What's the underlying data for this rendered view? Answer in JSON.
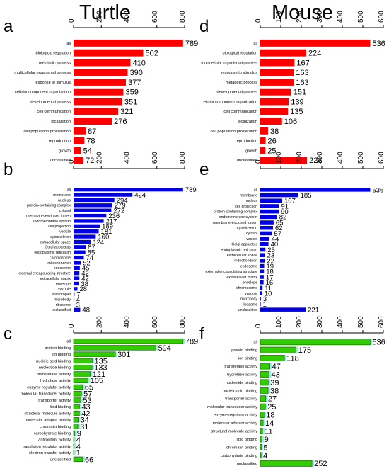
{
  "titles": {
    "left": "Turtle",
    "right": "Mouse"
  },
  "panel_letters": {
    "a": "a",
    "b": "b",
    "c": "c",
    "d": "d",
    "e": "e",
    "f": "f"
  },
  "colors": {
    "biological_process": "#ff0000",
    "cellular_component": "#0000e6",
    "molecular_function": "#33cc00"
  },
  "chart_data": [
    {
      "panel": "a",
      "type": "bar",
      "orientation": "horizontal",
      "xlim": [
        0,
        800
      ],
      "ticks": [
        0,
        200,
        400,
        600,
        800
      ],
      "color": "#ff0000",
      "categories": [
        "all",
        "biological regulation",
        "metabolic process",
        "multicellular organismal process",
        "response to stimulus",
        "cellular component organization",
        "developmental process",
        "cell communication",
        "localization",
        "cell population proliferation",
        "reproduction",
        "growth",
        "unclassified"
      ],
      "values": [
        789,
        502,
        410,
        390,
        377,
        359,
        351,
        321,
        276,
        87,
        78,
        54,
        72
      ]
    },
    {
      "panel": "b",
      "type": "bar",
      "orientation": "horizontal",
      "xlim": [
        0,
        800
      ],
      "ticks": [
        0,
        200,
        400,
        600,
        800
      ],
      "color": "#0000e6",
      "categories": [
        "all",
        "membrane",
        "nucleus",
        "protein-containing complex",
        "cytosol",
        "membrane-enclosed lumen",
        "endomembrane system",
        "cell projection",
        "vesicle",
        "cytoskeleton",
        "extracellular space",
        "Golgi apparatus",
        "endoplasmic reticulum",
        "chromosome",
        "mitochondrion",
        "endosome",
        "external encapsulating structure",
        "extracellular matrix",
        "envelope",
        "vacuole",
        "lipid droplet",
        "microbody",
        "ribosome",
        "unclassified"
      ],
      "values": [
        789,
        424,
        294,
        279,
        272,
        236,
        217,
        189,
        181,
        160,
        124,
        87,
        85,
        74,
        52,
        45,
        42,
        42,
        38,
        28,
        7,
        4,
        3,
        48
      ]
    },
    {
      "panel": "c",
      "type": "bar",
      "orientation": "horizontal",
      "xlim": [
        0,
        800
      ],
      "ticks": [
        0,
        200,
        400,
        600,
        800
      ],
      "color": "#33cc00",
      "categories": [
        "all",
        "protein binding",
        "ion binding",
        "nucleic acid binding",
        "nucleotide binding",
        "transferase activity",
        "hydrolase activity",
        "enzyme regulator activity",
        "molecular transducer activity",
        "transporter activity",
        "lipid binding",
        "structural molecule activity",
        "molecular adaptor activity",
        "chromatin binding",
        "carbohydrate binding",
        "antioxidant activity",
        "translation regulator activity",
        "electron transfer activity",
        "unclassified"
      ],
      "values": [
        789,
        594,
        301,
        135,
        133,
        121,
        105,
        65,
        57,
        53,
        43,
        42,
        34,
        31,
        9,
        4,
        4,
        1,
        66
      ]
    },
    {
      "panel": "d",
      "type": "bar",
      "orientation": "horizontal",
      "xlim": [
        0,
        600
      ],
      "ticks": [
        0,
        100,
        200,
        300,
        400,
        500,
        600
      ],
      "color": "#ff0000",
      "categories": [
        "all",
        "biological regulation",
        "multicellular organismal process",
        "response to stimulus",
        "metabolic process",
        "developmental process",
        "cellular component organization",
        "cell communication",
        "localization",
        "cell population proliferation",
        "reproduction",
        "growth",
        "unclassified"
      ],
      "values": [
        536,
        224,
        167,
        163,
        163,
        151,
        139,
        135,
        106,
        38,
        26,
        25,
        228
      ]
    },
    {
      "panel": "e",
      "type": "bar",
      "orientation": "horizontal",
      "xlim": [
        0,
        600
      ],
      "ticks": [
        0,
        100,
        200,
        300,
        400,
        500,
        600
      ],
      "color": "#0000e6",
      "categories": [
        "all",
        "membrane",
        "nucleus",
        "cell projection",
        "protein-containing complex",
        "endomembrane system",
        "membrane-enclosed lumen",
        "cytoskeleton",
        "cytosol",
        "vesicle",
        "Golgi apparatus",
        "endoplasmic reticulum",
        "extracellular space",
        "mitochondrion",
        "endosome",
        "external encapsulating structure",
        "extracellular matrix",
        "envelope",
        "chromosome",
        "vacuole",
        "microbody",
        "ribosome",
        "unclassified"
      ],
      "values": [
        536,
        185,
        107,
        91,
        90,
        82,
        65,
        62,
        57,
        44,
        40,
        25,
        23,
        22,
        19,
        18,
        17,
        16,
        11,
        10,
        3,
        1,
        221
      ]
    },
    {
      "panel": "f",
      "type": "bar",
      "orientation": "horizontal",
      "xlim": [
        0,
        600
      ],
      "ticks": [
        0,
        100,
        200,
        300,
        400,
        500,
        600
      ],
      "color": "#33cc00",
      "categories": [
        "all",
        "protein binding",
        "ion binding",
        "transferase activity",
        "hydrolase activity",
        "nucleotide binding",
        "nucleic acid binding",
        "transporter activity",
        "molecular transducer activity",
        "enzyme regulator activity",
        "molecular adaptor activity",
        "structural molecule activity",
        "lipid binding",
        "chromatin binding",
        "carbohydrate binding",
        "unclassified"
      ],
      "values": [
        536,
        175,
        118,
        47,
        43,
        39,
        38,
        27,
        25,
        18,
        14,
        11,
        9,
        5,
        4,
        252
      ]
    }
  ]
}
